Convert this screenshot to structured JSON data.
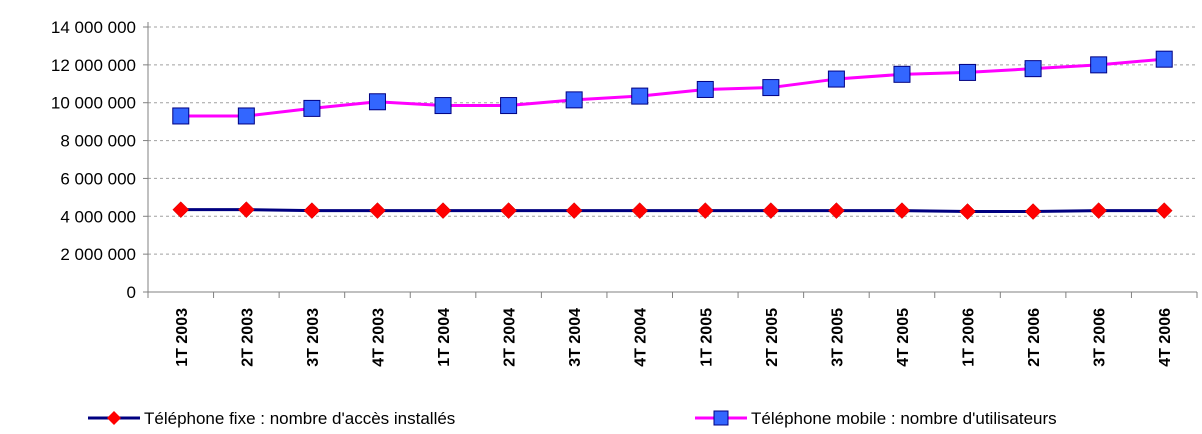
{
  "chart_data": {
    "type": "line",
    "categories": [
      "1T 2003",
      "2T 2003",
      "3T 2003",
      "4T 2003",
      "1T 2004",
      "2T 2004",
      "3T 2004",
      "4T 2004",
      "1T 2005",
      "2T 2005",
      "3T 2005",
      "4T 2005",
      "1T 2006",
      "2T 2006",
      "3T 2006",
      "4T 2006"
    ],
    "series": [
      {
        "name": "Téléphone fixe : nombre d'accès installés",
        "line_color": "#000080",
        "marker_color": "#ff0000",
        "marker": "diamond",
        "values": [
          4350000,
          4350000,
          4300000,
          4300000,
          4300000,
          4300000,
          4300000,
          4300000,
          4300000,
          4300000,
          4300000,
          4300000,
          4250000,
          4250000,
          4300000,
          4300000
        ]
      },
      {
        "name": "Téléphone mobile : nombre d'utilisateurs",
        "line_color": "#ff00ff",
        "marker_color": "#3366ff",
        "marker": "square",
        "values": [
          9300000,
          9300000,
          9700000,
          10050000,
          9850000,
          9850000,
          10150000,
          10350000,
          10700000,
          10800000,
          11250000,
          11500000,
          11600000,
          11800000,
          12000000,
          12300000
        ]
      }
    ],
    "ylim": [
      0,
      14000000
    ],
    "yticks": [
      0,
      2000000,
      4000000,
      6000000,
      8000000,
      10000000,
      12000000,
      14000000
    ],
    "ytick_labels": [
      "0",
      "2 000 000",
      "4 000 000",
      "6 000 000",
      "8 000 000",
      "10 000 000",
      "12 000 000",
      "14 000 000"
    ],
    "grid": true,
    "legend_position": "bottom",
    "title": "",
    "xlabel": "",
    "ylabel": ""
  }
}
